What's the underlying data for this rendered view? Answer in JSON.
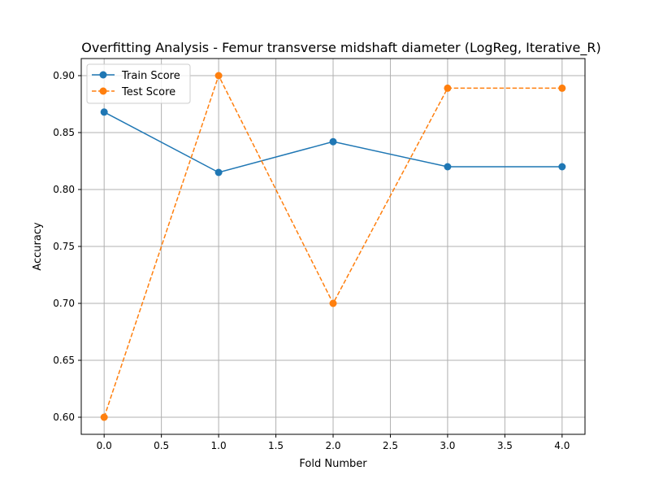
{
  "chart_data": {
    "type": "line",
    "title": "Overfitting Analysis - Femur transverse midshaft diameter (LogReg, Iterative_R)",
    "xlabel": "Fold Number",
    "ylabel": "Accuracy",
    "x": [
      0,
      1,
      2,
      3,
      4
    ],
    "xlim": [
      -0.2,
      4.2
    ],
    "ylim": [
      0.585,
      0.915
    ],
    "xticks": [
      0.0,
      0.5,
      1.0,
      1.5,
      2.0,
      2.5,
      3.0,
      3.5,
      4.0
    ],
    "xtick_labels": [
      "0.0",
      "0.5",
      "1.0",
      "1.5",
      "2.0",
      "2.5",
      "3.0",
      "3.5",
      "4.0"
    ],
    "yticks": [
      0.6,
      0.65,
      0.7,
      0.75,
      0.8,
      0.85,
      0.9
    ],
    "ytick_labels": [
      "0.60",
      "0.65",
      "0.70",
      "0.75",
      "0.80",
      "0.85",
      "0.90"
    ],
    "grid": true,
    "legend_position": "top-left",
    "series": [
      {
        "name": "Train Score",
        "values": [
          0.868,
          0.815,
          0.842,
          0.82,
          0.82
        ],
        "color": "#1f77b4",
        "line_style": "solid",
        "marker": "circle"
      },
      {
        "name": "Test Score",
        "values": [
          0.6,
          0.9,
          0.7,
          0.889,
          0.889
        ],
        "color": "#ff7f0e",
        "line_style": "dashed",
        "marker": "circle"
      }
    ]
  }
}
